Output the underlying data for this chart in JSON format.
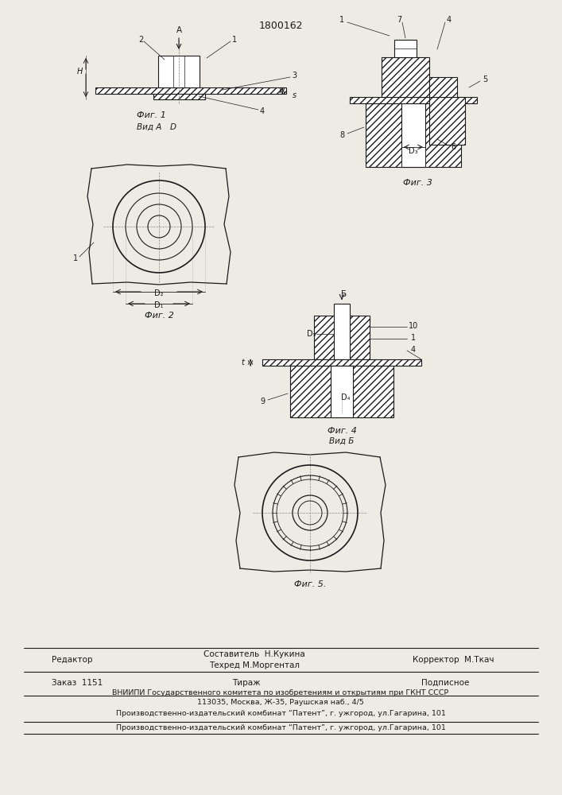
{
  "patent_number": "1800162",
  "bg_color": "#eeebe5",
  "footer": {
    "line1_left": "Редактор",
    "line1_center_top": "Составитель  Н.Кукина",
    "line1_center_bot": "Техред М.Моргентал",
    "line1_right": "Корректор  М.Ткач",
    "line2_left": "Заказ  1151",
    "line2_center": "Тираж",
    "line2_right": "Подписное",
    "line3": "ВНИИПИ Государственного комитета по изобретениям и открытиям при ГКНТ СССР",
    "line4": "113035, Москва, Ж-35, Раушская наб., 4/5",
    "line5": "Производственно-издательский комбинат “Патент”, г. ужгород, ул.Гагарина, 101"
  }
}
